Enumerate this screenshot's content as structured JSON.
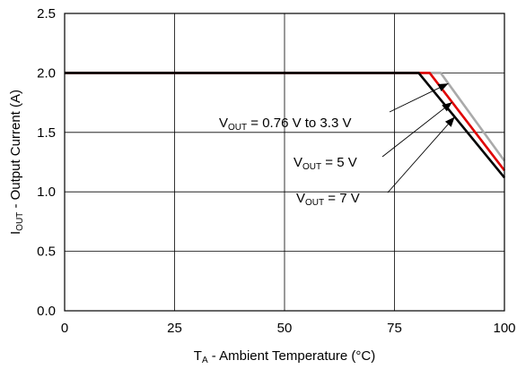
{
  "chart_data": {
    "type": "line",
    "title": "",
    "xlabel": {
      "main": "T",
      "sub": "A",
      "rest": " - Ambient Temperature (°C)"
    },
    "ylabel": {
      "main": "I",
      "sub": "OUT",
      "rest": " - Output Current (A)"
    },
    "xlim": [
      0,
      100
    ],
    "ylim": [
      0,
      2.5
    ],
    "xticks": [
      0,
      25,
      50,
      75,
      100
    ],
    "xtick_labels": [
      "0",
      "25",
      "50",
      "75",
      "100"
    ],
    "yticks": [
      0,
      0.5,
      1.0,
      1.5,
      2.0,
      2.5
    ],
    "ytick_labels": [
      "0.0",
      "0.5",
      "1.0",
      "1.5",
      "2.0",
      "2.5"
    ],
    "grid": true,
    "series": [
      {
        "name": "VOUT = 0.76 V to 3.3 V",
        "color": "#aaaaaa",
        "x": [
          0,
          85.5,
          100
        ],
        "y": [
          2.0,
          2.0,
          1.26
        ]
      },
      {
        "name": "VOUT = 5 V",
        "color": "#e00000",
        "x": [
          0,
          83,
          100
        ],
        "y": [
          2.0,
          2.0,
          1.18
        ]
      },
      {
        "name": "VOUT = 7 V",
        "color": "#000000",
        "x": [
          0,
          80.5,
          100
        ],
        "y": [
          2.0,
          2.0,
          1.12
        ]
      }
    ],
    "annotations": [
      {
        "label_main": "V",
        "label_sub": "OUT",
        "label_rest": " = 0.76 V to 3.3 V",
        "series": 0
      },
      {
        "label_main": "V",
        "label_sub": "OUT",
        "label_rest": " = 5 V",
        "series": 1
      },
      {
        "label_main": "V",
        "label_sub": "OUT",
        "label_rest": " = 7 V",
        "series": 2
      }
    ]
  }
}
